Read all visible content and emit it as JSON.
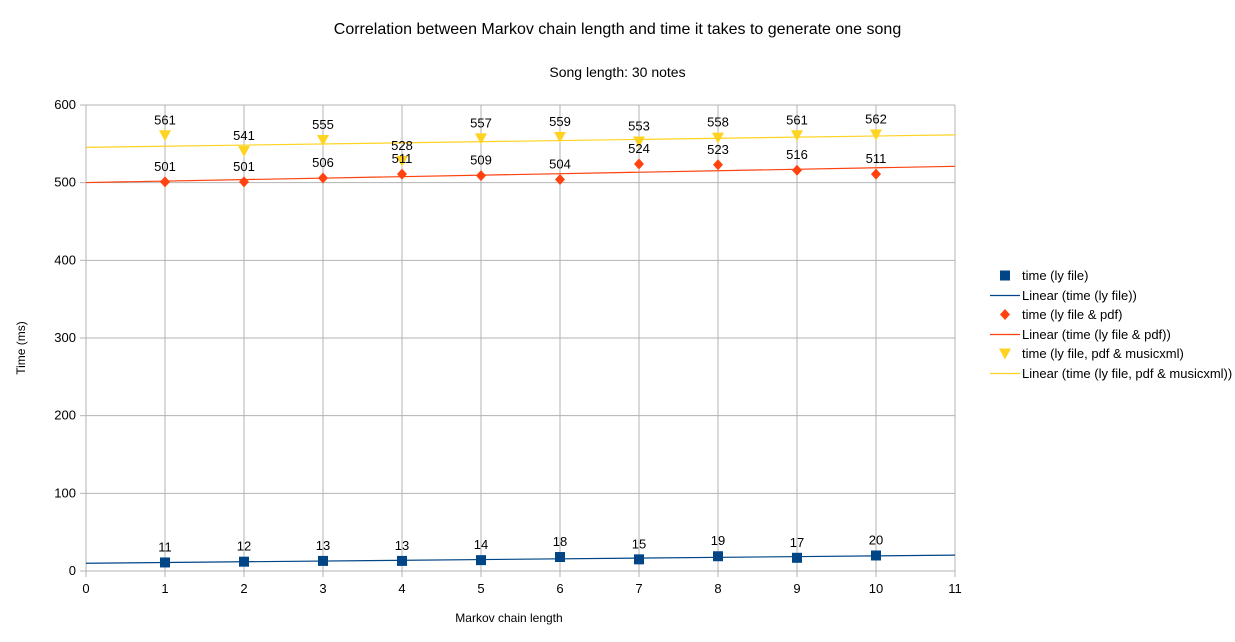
{
  "chart_data": {
    "type": "scatter",
    "title": "Correlation between Markov chain length and time it takes to generate one song",
    "subtitle": "Song length: 30 notes",
    "xlabel": "Markov chain length",
    "ylabel": "Time (ms)",
    "xlim": [
      0,
      11
    ],
    "ylim": [
      0,
      600
    ],
    "xticks": [
      0,
      1,
      2,
      3,
      4,
      5,
      6,
      7,
      8,
      9,
      10,
      11
    ],
    "yticks": [
      0,
      100,
      200,
      300,
      400,
      500,
      600
    ],
    "grid": true,
    "legend_position": "right",
    "x": [
      1,
      2,
      3,
      4,
      5,
      6,
      7,
      8,
      9,
      10
    ],
    "series": [
      {
        "name": "time (ly file)",
        "marker": "square",
        "color": "#004586",
        "values": [
          11,
          12,
          13,
          13,
          14,
          18,
          15,
          19,
          17,
          20
        ],
        "trendline": {
          "name": "Linear (time (ly file))",
          "color": "#004586"
        }
      },
      {
        "name": "time (ly file & pdf)",
        "marker": "diamond",
        "color": "#ff420e",
        "values": [
          501,
          501,
          506,
          511,
          509,
          504,
          524,
          523,
          516,
          511
        ],
        "trendline": {
          "name": "Linear (time (ly file & pdf))",
          "color": "#ff420e"
        }
      },
      {
        "name": "time (ly file, pdf & musicxml)",
        "marker": "triangle-down",
        "color": "#ffd320",
        "values": [
          561,
          541,
          555,
          528,
          557,
          559,
          553,
          558,
          561,
          562
        ],
        "trendline": {
          "name": "Linear (time (ly file, pdf & musicxml))",
          "color": "#ffd320"
        }
      }
    ]
  }
}
